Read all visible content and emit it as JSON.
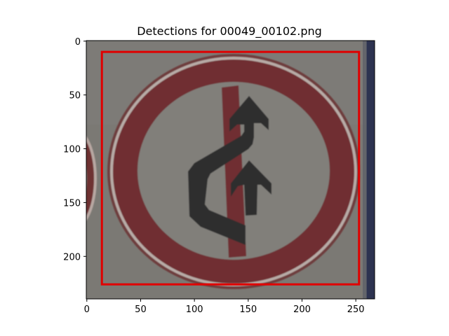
{
  "chart_data": {
    "type": "image",
    "title": "Detections for 00049_00102.png",
    "image_extent": {
      "width": 268,
      "height": 240
    },
    "xlim": [
      -0.5,
      267.5
    ],
    "ylim": [
      239.5,
      -0.5
    ],
    "x_ticks": [
      0,
      50,
      100,
      150,
      200,
      250
    ],
    "y_ticks": [
      0,
      50,
      100,
      150,
      200
    ],
    "detections": [
      {
        "x_min": 14,
        "y_min": 10,
        "x_max": 253,
        "y_max": 226,
        "color": "#e00000"
      }
    ],
    "image_content": "round prohibitory traffic sign: red ring and diagonal bar, black arrows, grey background",
    "colors": {
      "background": "#7d7b76",
      "ring": "#6e3032",
      "inner": "#7f7d78",
      "arrow": "#2f2f30",
      "frame_edge": "#2c3350"
    }
  }
}
